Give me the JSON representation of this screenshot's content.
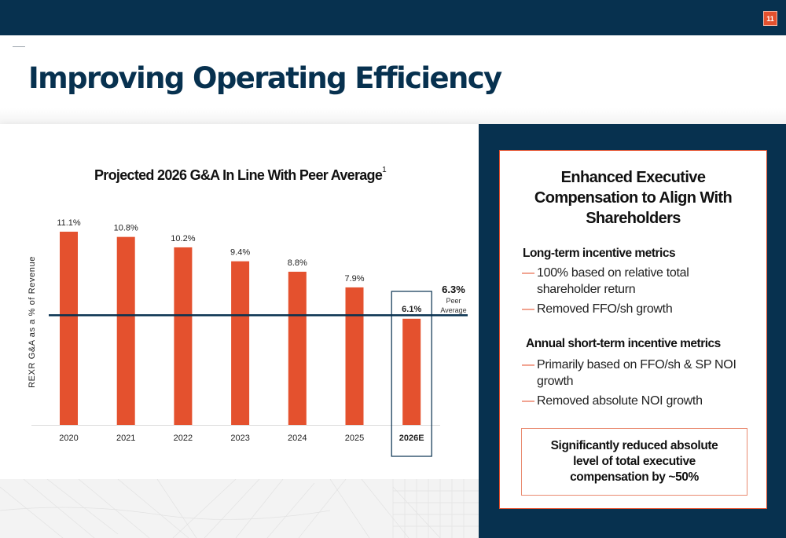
{
  "header": {
    "page_number": "11",
    "title": "Improving Operating Efficiency"
  },
  "colors": {
    "navy": "#07314f",
    "accent": "#e4512e"
  },
  "chart_data": {
    "type": "bar",
    "title": "Projected 2026 G&A In Line With Peer Average",
    "title_footnote": "1",
    "xlabel": "",
    "ylabel": "REXR G&A as a % of Revenue",
    "categories": [
      "2020",
      "2021",
      "2022",
      "2023",
      "2024",
      "2025",
      "2026E"
    ],
    "values": [
      11.1,
      10.8,
      10.2,
      9.4,
      8.8,
      7.9,
      6.1
    ],
    "data_labels": [
      "11.1%",
      "10.8%",
      "10.2%",
      "9.4%",
      "8.8%",
      "7.9%",
      "6.1%"
    ],
    "highlighted_category": "2026E",
    "ylim": [
      0,
      11.1
    ],
    "grid": false,
    "reference_line": {
      "value": 6.3,
      "label_value": "6.3%",
      "label_line1": "Peer",
      "label_line2": "Average"
    }
  },
  "panel": {
    "title": "Enhanced Executive Compensation to Align With Shareholders",
    "sections": [
      {
        "heading": "Long-term incentive metrics",
        "bullets": [
          "100% based on relative total shareholder return",
          "Removed FFO/sh growth"
        ]
      },
      {
        "heading": "Annual short-term incentive metrics",
        "bullets": [
          "Primarily based on FFO/sh & SP NOI growth",
          "Removed absolute NOI growth"
        ]
      }
    ],
    "highlight": "Significantly reduced absolute level of total executive compensation by ~50%"
  }
}
